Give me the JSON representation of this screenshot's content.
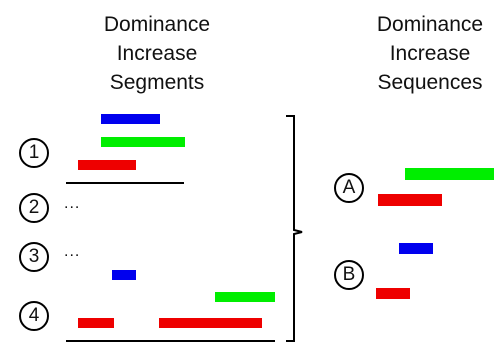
{
  "left_title": [
    "Dominance",
    "Increase",
    "Segments"
  ],
  "right_title": [
    "Dominance",
    "Increase",
    "Sequences"
  ],
  "segments": [
    {
      "label": "1"
    },
    {
      "label": "2",
      "ellipsis": "..."
    },
    {
      "label": "3",
      "ellipsis": "..."
    },
    {
      "label": "4"
    }
  ],
  "sequences": [
    {
      "label": "A"
    },
    {
      "label": "B"
    }
  ],
  "colors": {
    "blue": "#0000ee",
    "green": "#00ee00",
    "red": "#ee0000",
    "line": "#000000"
  }
}
